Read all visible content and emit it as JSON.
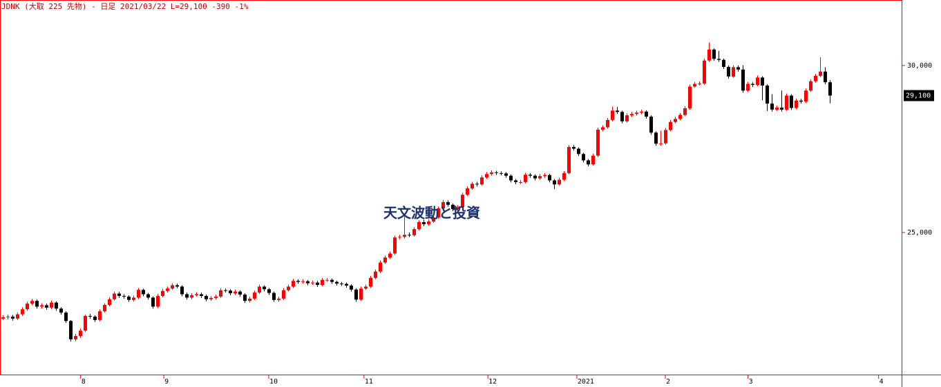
{
  "chart_data": {
    "type": "candlestick",
    "title": "JDNK (大取 225 先物) - 日足 2021/03/22 L=29,100 -390 -1%",
    "annotation": "天文波動と投資",
    "last_price": {
      "value": 29100,
      "label": "29,100"
    },
    "up_color": "#ff0000",
    "down_color": "#000000",
    "ylim": [
      20744,
      31963
    ],
    "yticks": [
      {
        "value": 25000,
        "label": "25,000"
      },
      {
        "value": 30000,
        "label": "30,000"
      }
    ],
    "xlim": [
      -0.57,
      185.86
    ],
    "xticks": [
      {
        "value": 16.1,
        "label": "8"
      },
      {
        "value": 33.3,
        "label": "9"
      },
      {
        "value": 55,
        "label": "10"
      },
      {
        "value": 74.7,
        "label": "11"
      },
      {
        "value": 100.3,
        "label": "12"
      },
      {
        "value": 118.7,
        "label": "2021"
      },
      {
        "value": 137,
        "label": "2"
      },
      {
        "value": 154.1,
        "label": "3"
      },
      {
        "value": 181.1,
        "label": "4"
      }
    ],
    "open": [
      22420,
      22460,
      22480,
      22420,
      22550,
      22700,
      22870,
      22950,
      22780,
      22820,
      22750,
      22900,
      22720,
      22600,
      22350,
      21800,
      21900,
      22060,
      22500,
      22480,
      22380,
      22640,
      22830,
      23000,
      23170,
      23100,
      23080,
      22980,
      23050,
      23280,
      23150,
      23050,
      22780,
      23100,
      23250,
      23320,
      23420,
      23380,
      23150,
      23050,
      23120,
      23150,
      23100,
      23000,
      23040,
      23080,
      23270,
      23260,
      23180,
      23230,
      23140,
      22950,
      23020,
      23200,
      23380,
      23300,
      23190,
      22980,
      23020,
      23270,
      23380,
      23550,
      23520,
      23540,
      23480,
      23500,
      23430,
      23580,
      23580,
      23520,
      23470,
      23460,
      23410,
      23290,
      22990,
      23320,
      23380,
      23640,
      23830,
      24100,
      24250,
      24370,
      24850,
      24870,
      24930,
      24920,
      25100,
      25310,
      25250,
      25330,
      25450,
      25720,
      25910,
      25830,
      25700,
      25760,
      26130,
      26320,
      26460,
      26440,
      26650,
      26750,
      26800,
      26780,
      26770,
      26700,
      26560,
      26510,
      26510,
      26730,
      26700,
      26620,
      26690,
      26720,
      26560,
      26440,
      26580,
      26780,
      27560,
      27510,
      27350,
      27160,
      27040,
      27300,
      28080,
      28150,
      28370,
      28650,
      28610,
      28330,
      28510,
      28550,
      28590,
      28620,
      28470,
      27990,
      27660,
      27670,
      28070,
      28310,
      28400,
      28520,
      28720,
      29370,
      29450,
      29460,
      30150,
      30480,
      30200,
      30170,
      29960,
      29670,
      29950,
      29880,
      29250,
      29450,
      29420,
      29640,
      29400,
      28860,
      28680,
      28740,
      28680,
      29100,
      28730,
      28950,
      28920,
      29250,
      29530,
      29690,
      29820,
      29500
    ],
    "high": [
      22520,
      22540,
      22530,
      22600,
      22760,
      22930,
      23010,
      22990,
      22880,
      22870,
      22960,
      22940,
      22760,
      22640,
      22380,
      21960,
      22120,
      22540,
      22560,
      22520,
      22700,
      22880,
      23060,
      23230,
      23220,
      23150,
      23120,
      23110,
      23340,
      23320,
      23190,
      23090,
      23160,
      23310,
      23380,
      23480,
      23470,
      23420,
      23200,
      23180,
      23210,
      23200,
      23140,
      23100,
      23140,
      23330,
      23320,
      23300,
      23290,
      23270,
      23180,
      23080,
      23260,
      23440,
      23420,
      23340,
      23230,
      23080,
      23330,
      23440,
      23610,
      23600,
      23600,
      23580,
      23560,
      23550,
      23640,
      23640,
      23620,
      23560,
      23520,
      23500,
      23450,
      23330,
      23380,
      23440,
      23700,
      23890,
      24160,
      24310,
      24430,
      24910,
      24930,
      25480,
      25000,
      25160,
      25370,
      25380,
      25390,
      25510,
      25780,
      25970,
      25960,
      25870,
      25820,
      26190,
      26380,
      26520,
      26520,
      26710,
      26810,
      26860,
      26850,
      26830,
      26810,
      26740,
      26600,
      26570,
      26790,
      26780,
      26740,
      26750,
      26780,
      26760,
      26600,
      26640,
      26840,
      27620,
      27620,
      27550,
      27390,
      27200,
      27360,
      28140,
      28210,
      28430,
      28770,
      28760,
      28650,
      28570,
      28610,
      28650,
      28680,
      28660,
      28510,
      28030,
      28050,
      28130,
      28370,
      28460,
      28580,
      28780,
      29430,
      29510,
      29520,
      30210,
      30690,
      30520,
      30440,
      30210,
      30000,
      30010,
      30000,
      30010,
      29510,
      29500,
      29700,
      29680,
      29440,
      29140,
      28800,
      29250,
      29160,
      29140,
      29010,
      29000,
      29310,
      29590,
      29750,
      30250,
      29950,
      29560
    ],
    "low": [
      22380,
      22400,
      22360,
      22380,
      22500,
      22650,
      22820,
      22720,
      22720,
      22690,
      22700,
      22660,
      22540,
      22290,
      21730,
      21740,
      21850,
      22020,
      22420,
      22320,
      22340,
      22600,
      22790,
      22960,
      23040,
      23020,
      22920,
      22930,
      23000,
      23090,
      22990,
      22720,
      22740,
      23060,
      23200,
      23280,
      23330,
      23090,
      22990,
      23000,
      23080,
      23040,
      22940,
      22950,
      22990,
      23040,
      23200,
      23120,
      23130,
      23080,
      22890,
      22900,
      22980,
      23160,
      23240,
      23130,
      22920,
      22930,
      22980,
      23230,
      23340,
      23460,
      23470,
      23420,
      23430,
      23370,
      23390,
      23520,
      23460,
      23410,
      23400,
      23350,
      23230,
      22930,
      22950,
      23280,
      23340,
      23600,
      23790,
      24060,
      24210,
      24330,
      24800,
      24820,
      24860,
      24880,
      25060,
      25190,
      25200,
      25290,
      25410,
      25680,
      25770,
      25640,
      25650,
      25720,
      26090,
      26280,
      26380,
      26400,
      26610,
      26700,
      26720,
      26710,
      26640,
      26500,
      26450,
      26450,
      26470,
      26640,
      26560,
      26580,
      26640,
      26500,
      26300,
      26400,
      26540,
      26740,
      27450,
      27290,
      27100,
      26980,
      27000,
      27260,
      28030,
      28110,
      28330,
      28550,
      28270,
      28290,
      28460,
      28500,
      28540,
      28410,
      27930,
      27600,
      27600,
      27630,
      28030,
      28270,
      28360,
      28480,
      28680,
      29330,
      29400,
      29420,
      30110,
      30140,
      30110,
      29900,
      29610,
      29630,
      29820,
      29190,
      29210,
      29360,
      29380,
      28960,
      28640,
      28620,
      28640,
      28620,
      28640,
      28670,
      28690,
      28860,
      28880,
      29210,
      29490,
      29650,
      29440,
      28870
    ],
    "close": [
      22460,
      22480,
      22420,
      22550,
      22700,
      22870,
      22950,
      22780,
      22820,
      22750,
      22900,
      22720,
      22600,
      22350,
      21800,
      21900,
      22060,
      22500,
      22480,
      22380,
      22640,
      22830,
      23000,
      23170,
      23100,
      23080,
      22980,
      23050,
      23280,
      23150,
      23050,
      22780,
      23100,
      23250,
      23320,
      23420,
      23380,
      23150,
      23050,
      23120,
      23150,
      23100,
      23000,
      23040,
      23080,
      23270,
      23260,
      23180,
      23230,
      23140,
      22950,
      23020,
      23200,
      23380,
      23300,
      23190,
      22980,
      23020,
      23270,
      23380,
      23550,
      23520,
      23540,
      23480,
      23500,
      23430,
      23580,
      23580,
      23520,
      23470,
      23460,
      23410,
      23290,
      22990,
      23320,
      23380,
      23640,
      23830,
      24100,
      24250,
      24370,
      24850,
      24870,
      24930,
      24920,
      25100,
      25310,
      25250,
      25330,
      25450,
      25720,
      25910,
      25830,
      25700,
      25760,
      26130,
      26320,
      26460,
      26440,
      26650,
      26750,
      26800,
      26780,
      26770,
      26700,
      26560,
      26510,
      26510,
      26730,
      26700,
      26620,
      26690,
      26720,
      26560,
      26440,
      26580,
      26780,
      27560,
      27510,
      27350,
      27160,
      27040,
      27300,
      28080,
      28150,
      28370,
      28650,
      28610,
      28330,
      28510,
      28550,
      28590,
      28620,
      28470,
      27990,
      27660,
      27670,
      28070,
      28310,
      28400,
      28520,
      28720,
      29370,
      29450,
      29460,
      30150,
      30480,
      30200,
      30170,
      29960,
      29670,
      29950,
      29880,
      29250,
      29450,
      29420,
      29640,
      29400,
      28860,
      28680,
      28740,
      28680,
      29100,
      28730,
      28950,
      28920,
      29250,
      29530,
      29690,
      29820,
      29500,
      29100
    ]
  }
}
